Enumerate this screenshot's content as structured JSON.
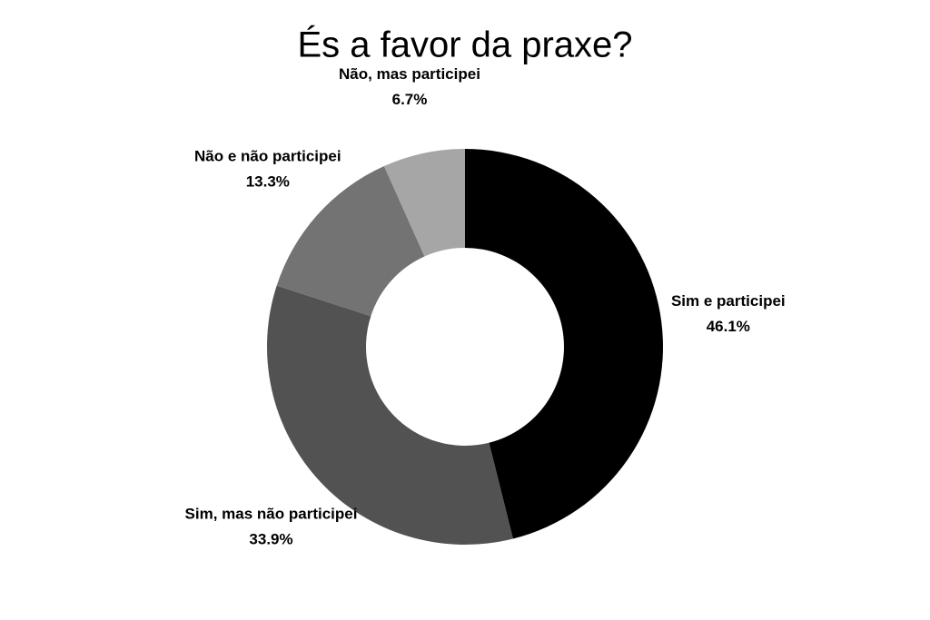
{
  "chart_data": {
    "type": "donut",
    "title": "És a favor da praxe?",
    "categories": [
      "Sim e participei",
      "Sim, mas não participei",
      "Não e não participei",
      "Não, mas participei"
    ],
    "values": [
      46.1,
      33.9,
      13.3,
      6.7
    ],
    "value_labels": [
      "46.1%",
      "33.9%",
      "13.3%",
      "6.7%"
    ],
    "colors": [
      "#000000",
      "#525252",
      "#737373",
      "#a6a6a6"
    ]
  }
}
